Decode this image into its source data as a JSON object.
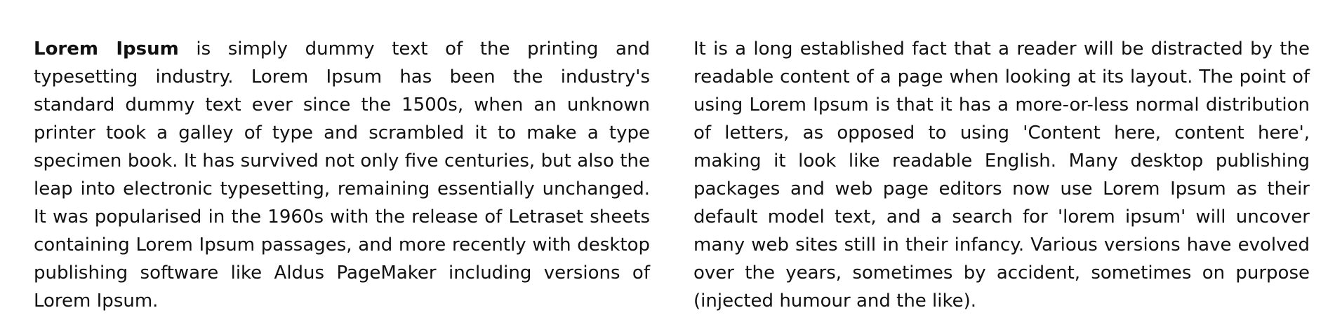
{
  "article": {
    "left": {
      "lead": "Lorem Ipsum",
      "body": " is simply dummy text of the printing and typesetting industry. Lorem Ipsum has been the industry's standard dummy text ever since the 1500s, when an unknown printer took a galley of type and scrambled it to make a type specimen book. It has survived not only five centuries, but also the leap into electronic typesetting, remaining essentially unchanged. It was popularised in the 1960s with the release of Letraset sheets containing Lorem Ipsum passages, and more recently with desktop publishing software like Aldus PageMaker including versions of Lorem Ipsum."
    },
    "right": {
      "body": "It is a long established fact that a reader will be distracted by the readable content of a page when looking at its layout. The point of using Lorem Ipsum is that it has a more-or-less normal distribution of letters, as opposed to using 'Content here, content here', making it look like readable English. Many desktop publishing packages and web page editors now use Lorem Ipsum as their default model text, and a search for 'lorem ipsum' will uncover many web sites still in their infancy. Various versions have evolved over the years, sometimes by accident, sometimes on purpose (injected humour and the like)."
    }
  }
}
